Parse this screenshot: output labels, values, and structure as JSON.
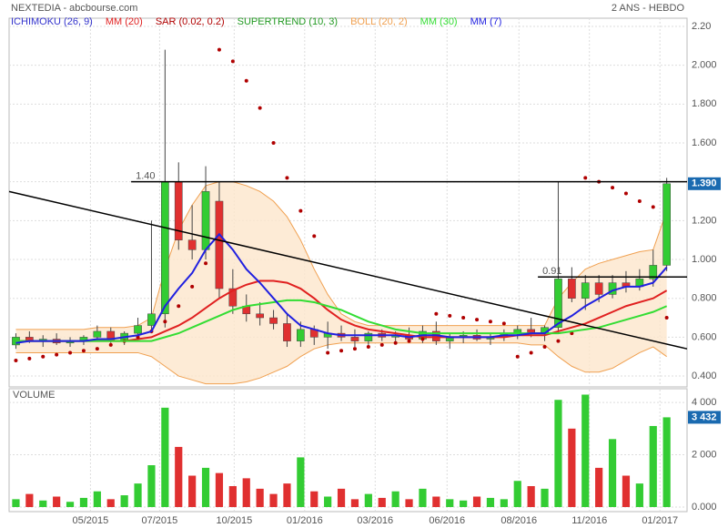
{
  "chart_data": {
    "type": "candlestick",
    "title": "NEXTEDIA - abcbourse.com",
    "subtitle": "2 ANS - HEBDO",
    "x": [
      0,
      1,
      2,
      3,
      4,
      5,
      6,
      7,
      8,
      9,
      10,
      11,
      12,
      13,
      14,
      15,
      16,
      17,
      18,
      19,
      20,
      21,
      22,
      23,
      24,
      25,
      26,
      27,
      28,
      29,
      30,
      31,
      32,
      33,
      34,
      35,
      36,
      37,
      38,
      39,
      40,
      41,
      42,
      43,
      44,
      45,
      46,
      47,
      48
    ],
    "open": [
      0.56,
      0.6,
      0.58,
      0.59,
      0.57,
      0.58,
      0.6,
      0.63,
      0.58,
      0.62,
      0.66,
      0.72,
      1.4,
      1.1,
      1.05,
      1.3,
      0.85,
      0.76,
      0.72,
      0.7,
      0.67,
      0.58,
      0.64,
      0.6,
      0.62,
      0.6,
      0.58,
      0.62,
      0.6,
      0.61,
      0.59,
      0.63,
      0.58,
      0.6,
      0.61,
      0.59,
      0.6,
      0.62,
      0.64,
      0.62,
      0.65,
      0.9,
      0.8,
      0.88,
      0.82,
      0.88,
      0.86,
      0.9,
      0.97
    ],
    "high": [
      0.62,
      0.63,
      0.61,
      0.62,
      0.6,
      0.61,
      0.66,
      0.65,
      0.63,
      0.7,
      1.2,
      2.08,
      1.5,
      1.28,
      1.48,
      1.4,
      0.95,
      0.82,
      0.78,
      0.74,
      0.72,
      0.68,
      0.66,
      0.68,
      0.66,
      0.64,
      0.63,
      0.64,
      0.63,
      0.65,
      0.66,
      0.68,
      0.62,
      0.63,
      0.64,
      0.62,
      0.64,
      0.66,
      0.7,
      0.66,
      1.4,
      0.96,
      0.92,
      0.92,
      0.92,
      0.94,
      0.95,
      1.05,
      1.42
    ],
    "low": [
      0.54,
      0.57,
      0.55,
      0.56,
      0.55,
      0.56,
      0.58,
      0.57,
      0.56,
      0.6,
      0.62,
      0.65,
      1.05,
      1.0,
      1.0,
      0.8,
      0.72,
      0.68,
      0.66,
      0.64,
      0.55,
      0.55,
      0.56,
      0.54,
      0.58,
      0.55,
      0.56,
      0.58,
      0.57,
      0.58,
      0.57,
      0.56,
      0.54,
      0.57,
      0.58,
      0.56,
      0.58,
      0.59,
      0.6,
      0.58,
      0.62,
      0.78,
      0.74,
      0.78,
      0.8,
      0.83,
      0.84,
      0.86,
      0.94
    ],
    "close": [
      0.6,
      0.58,
      0.59,
      0.57,
      0.58,
      0.6,
      0.63,
      0.58,
      0.62,
      0.66,
      0.72,
      1.4,
      1.1,
      1.05,
      1.35,
      0.85,
      0.76,
      0.72,
      0.7,
      0.67,
      0.58,
      0.64,
      0.6,
      0.62,
      0.6,
      0.58,
      0.62,
      0.6,
      0.61,
      0.59,
      0.63,
      0.58,
      0.6,
      0.61,
      0.59,
      0.6,
      0.62,
      0.64,
      0.62,
      0.65,
      0.9,
      0.8,
      0.88,
      0.82,
      0.88,
      0.86,
      0.9,
      0.97,
      1.39
    ],
    "up_color": "#33cc33",
    "down_color": "#e03030",
    "xlim": [
      -0.5,
      49.5
    ],
    "xticks": [
      {
        "value": 5.5,
        "label": "05/2015"
      },
      {
        "value": 10.6,
        "label": "07/2015"
      },
      {
        "value": 16.1,
        "label": "10/2015"
      },
      {
        "value": 21.3,
        "label": "01/2016"
      },
      {
        "value": 26.5,
        "label": "03/2016"
      },
      {
        "value": 31.8,
        "label": "06/2016"
      },
      {
        "value": 37.1,
        "label": "08/2016"
      },
      {
        "value": 42.3,
        "label": "11/2016"
      },
      {
        "value": 47.5,
        "label": "01/2017"
      }
    ],
    "ylim": [
      0.344,
      2.242
    ],
    "yticks": [
      {
        "value": 0.4,
        "label": "0.400"
      },
      {
        "value": 0.6,
        "label": "0.600"
      },
      {
        "value": 0.8,
        "label": "0.800"
      },
      {
        "value": 1.0,
        "label": "1.000"
      },
      {
        "value": 1.2,
        "label": "1.200"
      },
      {
        "value": 1.4,
        "label": "1.400"
      },
      {
        "value": 1.6,
        "label": "1.600"
      },
      {
        "value": 1.8,
        "label": "1.800"
      },
      {
        "value": 2.0,
        "label": "2.000"
      },
      {
        "value": 2.2,
        "label": "2.20"
      }
    ],
    "grid": true,
    "indicators": [
      {
        "name": "ICHIMOKU (26, 9)",
        "color": "#3333cc"
      },
      {
        "name": "MM (20)",
        "color": "#e02020",
        "style": "line",
        "values": [
          0.58,
          0.58,
          0.58,
          0.58,
          0.58,
          0.58,
          0.58,
          0.58,
          0.58,
          0.59,
          0.6,
          0.63,
          0.66,
          0.7,
          0.75,
          0.8,
          0.84,
          0.87,
          0.89,
          0.89,
          0.88,
          0.85,
          0.8,
          0.74,
          0.69,
          0.66,
          0.64,
          0.63,
          0.62,
          0.61,
          0.6,
          0.6,
          0.6,
          0.6,
          0.6,
          0.6,
          0.6,
          0.61,
          0.61,
          0.61,
          0.63,
          0.65,
          0.67,
          0.7,
          0.73,
          0.76,
          0.78,
          0.8,
          0.84
        ]
      },
      {
        "name": "SAR (0.02, 0.2)",
        "color": "#b00000",
        "style": "dots",
        "values": [
          0.48,
          0.49,
          0.5,
          0.51,
          0.52,
          0.53,
          0.54,
          0.56,
          0.58,
          0.6,
          0.63,
          0.68,
          0.76,
          0.86,
          0.98,
          2.08,
          2.02,
          1.92,
          1.78,
          1.6,
          1.42,
          1.25,
          1.12,
          0.52,
          0.53,
          0.54,
          0.55,
          0.56,
          0.57,
          0.58,
          0.59,
          0.72,
          0.71,
          0.7,
          0.69,
          0.68,
          0.67,
          0.5,
          0.52,
          0.55,
          0.58,
          0.62,
          1.42,
          1.4,
          1.37,
          1.34,
          1.3,
          1.27,
          0.7
        ]
      },
      {
        "name": "SUPERTREND (10, 3)",
        "color": "#229922"
      },
      {
        "name": "BOLL (20, 2)",
        "color": "#f0a050",
        "style": "band",
        "upper": [
          0.64,
          0.64,
          0.64,
          0.64,
          0.64,
          0.64,
          0.65,
          0.65,
          0.65,
          0.66,
          0.7,
          0.95,
          1.15,
          1.28,
          1.38,
          1.4,
          1.4,
          1.38,
          1.35,
          1.3,
          1.22,
          1.1,
          0.95,
          0.82,
          0.72,
          0.68,
          0.66,
          0.66,
          0.66,
          0.66,
          0.66,
          0.66,
          0.66,
          0.66,
          0.66,
          0.66,
          0.66,
          0.66,
          0.66,
          0.66,
          0.8,
          0.88,
          0.95,
          0.98,
          1.0,
          1.02,
          1.04,
          1.05,
          1.25
        ],
        "lower": [
          0.52,
          0.52,
          0.52,
          0.52,
          0.52,
          0.52,
          0.52,
          0.52,
          0.52,
          0.52,
          0.5,
          0.45,
          0.4,
          0.38,
          0.36,
          0.36,
          0.36,
          0.37,
          0.39,
          0.42,
          0.45,
          0.5,
          0.54,
          0.56,
          0.57,
          0.57,
          0.57,
          0.57,
          0.57,
          0.57,
          0.57,
          0.57,
          0.57,
          0.57,
          0.57,
          0.57,
          0.57,
          0.57,
          0.56,
          0.56,
          0.5,
          0.45,
          0.42,
          0.42,
          0.44,
          0.48,
          0.52,
          0.55,
          0.5
        ]
      },
      {
        "name": "MM (30)",
        "color": "#33dd33",
        "style": "line",
        "values": [
          0.58,
          0.58,
          0.58,
          0.58,
          0.58,
          0.58,
          0.58,
          0.58,
          0.58,
          0.58,
          0.58,
          0.6,
          0.62,
          0.65,
          0.68,
          0.71,
          0.74,
          0.76,
          0.77,
          0.78,
          0.79,
          0.79,
          0.78,
          0.76,
          0.74,
          0.71,
          0.68,
          0.66,
          0.64,
          0.63,
          0.62,
          0.62,
          0.62,
          0.62,
          0.62,
          0.62,
          0.62,
          0.62,
          0.62,
          0.62,
          0.62,
          0.63,
          0.64,
          0.65,
          0.67,
          0.69,
          0.71,
          0.73,
          0.76
        ]
      },
      {
        "name": "MM (7)",
        "color": "#2020e0",
        "style": "line",
        "values": [
          0.57,
          0.58,
          0.58,
          0.58,
          0.58,
          0.58,
          0.59,
          0.59,
          0.6,
          0.61,
          0.63,
          0.76,
          0.85,
          0.93,
          1.05,
          1.13,
          1.05,
          0.95,
          0.88,
          0.8,
          0.72,
          0.66,
          0.64,
          0.62,
          0.61,
          0.61,
          0.61,
          0.61,
          0.61,
          0.6,
          0.61,
          0.61,
          0.6,
          0.6,
          0.6,
          0.6,
          0.61,
          0.61,
          0.62,
          0.62,
          0.67,
          0.71,
          0.76,
          0.8,
          0.84,
          0.86,
          0.86,
          0.88,
          0.96
        ]
      }
    ],
    "levels": [
      {
        "value": 1.4,
        "label": "1.40",
        "from": 8.5
      },
      {
        "value": 0.91,
        "label": "0.91",
        "from": 38.5
      }
    ],
    "trendline": [
      1.35,
      0.54
    ],
    "last_value": {
      "value": 1.39,
      "label": "1.390"
    },
    "volume": {
      "title": "VOLUME",
      "values": [
        300,
        500,
        250,
        400,
        200,
        350,
        600,
        300,
        450,
        900,
        1600,
        3800,
        2300,
        1200,
        1500,
        1300,
        800,
        1100,
        700,
        500,
        900,
        1900,
        600,
        400,
        700,
        300,
        500,
        350,
        600,
        300,
        700,
        400,
        300,
        250,
        400,
        350,
        300,
        1000,
        800,
        700,
        4100,
        3000,
        4300,
        1500,
        2600,
        1200,
        900,
        3100,
        3432
      ],
      "ylim": [
        -175,
        4526
      ],
      "yticks": [
        {
          "value": 0,
          "label": "0.000"
        },
        {
          "value": 2000,
          "label": "2 000"
        },
        {
          "value": 4000,
          "label": "4 000"
        }
      ],
      "last_value": {
        "value": 3432,
        "label": "3 432"
      }
    }
  }
}
